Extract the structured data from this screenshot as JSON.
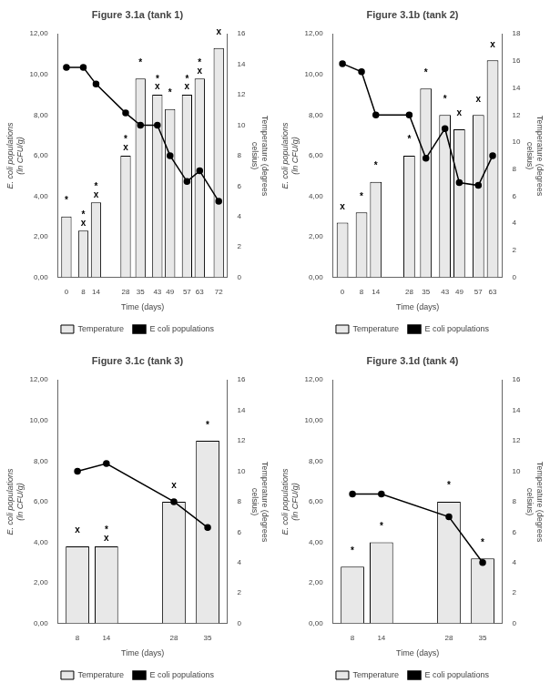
{
  "chart_data": [
    {
      "type": "bar",
      "title": "Figure 3.1a (tank 1)",
      "x": [
        0,
        8,
        14,
        28,
        35,
        43,
        49,
        57,
        63,
        72
      ],
      "series": [
        {
          "name": "Temperature",
          "type": "bar",
          "color": "#e8e8e8",
          "values": [
            3.0,
            2.3,
            3.7,
            6.0,
            9.8,
            9.0,
            8.3,
            9.0,
            9.8,
            11.3
          ]
        },
        {
          "name": "E coli populations",
          "type": "line",
          "axis": "y2",
          "color": "#000000",
          "marker": "circle",
          "values": [
            13.8,
            13.8,
            12.7,
            10.8,
            10.0,
            10.0,
            8.0,
            6.3,
            7.0,
            5.0
          ]
        }
      ],
      "xlabel": "Time (days)",
      "ylabel": "E. coli populations\n(ln CFU/g)",
      "y2label": "Temperature (degrees\ncelsius)",
      "xlim": [
        -4,
        76
      ],
      "xticks": [
        0,
        8,
        14,
        28,
        35,
        43,
        49,
        57,
        63,
        72
      ],
      "ylim": [
        0,
        12
      ],
      "yticks": [
        {
          "value": 0,
          "label": "0,00"
        },
        {
          "value": 2,
          "label": "2,00"
        },
        {
          "value": 4,
          "label": "4,00"
        },
        {
          "value": 6,
          "label": "6,00"
        },
        {
          "value": 8,
          "label": "8,00"
        },
        {
          "value": 10,
          "label": "10,00"
        },
        {
          "value": 12,
          "label": "12,00"
        }
      ],
      "y2lim": [
        0,
        16
      ],
      "y2ticks": [
        0,
        2,
        4,
        6,
        8,
        10,
        12,
        14,
        16
      ],
      "annotations": [
        {
          "x": 0,
          "y": 3.55,
          "text": "*"
        },
        {
          "x": 8,
          "y": 2.85,
          "text": "*"
        },
        {
          "x": 8,
          "y": 2.45,
          "text": "x"
        },
        {
          "x": 14,
          "y": 4.25,
          "text": "*"
        },
        {
          "x": 14,
          "y": 3.85,
          "text": "x"
        },
        {
          "x": 28,
          "y": 6.55,
          "text": "*"
        },
        {
          "x": 28,
          "y": 6.15,
          "text": "x"
        },
        {
          "x": 35,
          "y": 10.35,
          "text": "*"
        },
        {
          "x": 43,
          "y": 9.55,
          "text": "*"
        },
        {
          "x": 43,
          "y": 9.15,
          "text": "x"
        },
        {
          "x": 49,
          "y": 8.85,
          "text": "*"
        },
        {
          "x": 57,
          "y": 9.55,
          "text": "*"
        },
        {
          "x": 57,
          "y": 9.15,
          "text": "x"
        },
        {
          "x": 63,
          "y": 10.35,
          "text": "*"
        },
        {
          "x": 63,
          "y": 9.95,
          "text": "x"
        },
        {
          "x": 72,
          "y": 11.85,
          "text": "x"
        }
      ],
      "legend": "bottom",
      "grid": false
    },
    {
      "type": "bar",
      "title": "Figure 3.1b (tank 2)",
      "x": [
        0,
        8,
        14,
        28,
        35,
        43,
        49,
        57,
        63
      ],
      "series": [
        {
          "name": "Temperature",
          "type": "bar",
          "color": "#e8e8e8",
          "values": [
            2.7,
            3.2,
            4.7,
            6.0,
            9.3,
            8.0,
            7.3,
            8.0,
            10.7
          ]
        },
        {
          "name": "E coli populations",
          "type": "line",
          "axis": "y2",
          "color": "#000000",
          "marker": "circle",
          "values": [
            15.8,
            15.2,
            12.0,
            12.0,
            8.8,
            11.0,
            7.0,
            6.8,
            9.0
          ]
        }
      ],
      "xlabel": "Time (days)",
      "ylabel": "E. coli populations\n(ln CFU/g)",
      "y2label": "Temperature (degrees\ncelsius)",
      "xlim": [
        -4,
        67
      ],
      "xticks": [
        0,
        8,
        14,
        28,
        35,
        43,
        49,
        57,
        63
      ],
      "ylim": [
        0,
        12
      ],
      "yticks": [
        {
          "value": 0,
          "label": "0,00"
        },
        {
          "value": 2,
          "label": "2,00"
        },
        {
          "value": 4,
          "label": "4,00"
        },
        {
          "value": 6,
          "label": "6,00"
        },
        {
          "value": 8,
          "label": "8,00"
        },
        {
          "value": 10,
          "label": "10,00"
        },
        {
          "value": 12,
          "label": "12,00"
        }
      ],
      "y2lim": [
        0,
        18
      ],
      "y2ticks": [
        0,
        2,
        4,
        6,
        8,
        10,
        12,
        14,
        16,
        18
      ],
      "annotations": [
        {
          "x": 0,
          "y": 3.25,
          "text": "x"
        },
        {
          "x": 8,
          "y": 3.75,
          "text": "*"
        },
        {
          "x": 14,
          "y": 5.25,
          "text": "*"
        },
        {
          "x": 28,
          "y": 6.55,
          "text": "*"
        },
        {
          "x": 35,
          "y": 9.85,
          "text": "*"
        },
        {
          "x": 43,
          "y": 8.55,
          "text": "*"
        },
        {
          "x": 49,
          "y": 7.85,
          "text": "x"
        },
        {
          "x": 57,
          "y": 8.55,
          "text": "x"
        },
        {
          "x": 63,
          "y": 11.25,
          "text": "x"
        }
      ],
      "legend": "bottom",
      "grid": false
    },
    {
      "type": "bar",
      "title": "Figure 3.1c (tank 3)",
      "x": [
        8,
        14,
        28,
        35
      ],
      "series": [
        {
          "name": "Temperature",
          "type": "bar",
          "color": "#e8e8e8",
          "values": [
            3.8,
            3.8,
            6.0,
            9.0
          ]
        },
        {
          "name": "E coli populations",
          "type": "line",
          "axis": "y2",
          "color": "#000000",
          "marker": "circle",
          "values": [
            10.0,
            10.5,
            8.0,
            6.3
          ]
        }
      ],
      "xlabel": "Time (days)",
      "ylabel": "E. coli populations\n(ln CFU/g)",
      "y2label": "Temperature (degrees\ncelsius)",
      "xlim": [
        3.95,
        39.05
      ],
      "xticks": [
        8,
        14,
        28,
        35
      ],
      "ylim": [
        0,
        12
      ],
      "yticks": [
        {
          "value": 0,
          "label": "0,00"
        },
        {
          "value": 2,
          "label": "2,00"
        },
        {
          "value": 4,
          "label": "4,00"
        },
        {
          "value": 6,
          "label": "6,00"
        },
        {
          "value": 8,
          "label": "8,00"
        },
        {
          "value": 10,
          "label": "10,00"
        },
        {
          "value": 12,
          "label": "12,00"
        }
      ],
      "y2lim": [
        0,
        16
      ],
      "y2ticks": [
        0,
        2,
        4,
        6,
        8,
        10,
        12,
        14,
        16
      ],
      "annotations": [
        {
          "x": 8,
          "y": 4.35,
          "text": "x"
        },
        {
          "x": 14,
          "y": 4.35,
          "text": "*"
        },
        {
          "x": 14,
          "y": 3.95,
          "text": "x"
        },
        {
          "x": 28,
          "y": 6.55,
          "text": "x"
        },
        {
          "x": 35,
          "y": 9.55,
          "text": "*"
        }
      ],
      "legend": "bottom",
      "grid": false
    },
    {
      "type": "bar",
      "title": "Figure 3.1d (tank 4)",
      "x": [
        8,
        14,
        28,
        35
      ],
      "series": [
        {
          "name": "Temperature",
          "type": "bar",
          "color": "#e8e8e8",
          "values": [
            2.8,
            4.0,
            6.0,
            3.2
          ]
        },
        {
          "name": "E coli populations",
          "type": "line",
          "axis": "y2",
          "color": "#000000",
          "marker": "circle",
          "values": [
            8.5,
            8.5,
            7.0,
            4.0
          ]
        }
      ],
      "xlabel": "Time (days)",
      "ylabel": "E. coli populations\n(ln CFU/g)",
      "y2label": "Temperature (degrees\ncelsius)",
      "xlim": [
        3.95,
        39.05
      ],
      "xticks": [
        8,
        14,
        28,
        35
      ],
      "ylim": [
        0,
        12
      ],
      "yticks": [
        {
          "value": 0,
          "label": "0,00"
        },
        {
          "value": 2,
          "label": "2,00"
        },
        {
          "value": 4,
          "label": "4,00"
        },
        {
          "value": 6,
          "label": "6,00"
        },
        {
          "value": 8,
          "label": "8,00"
        },
        {
          "value": 10,
          "label": "10,00"
        },
        {
          "value": 12,
          "label": "12,00"
        }
      ],
      "y2lim": [
        0,
        16
      ],
      "y2ticks": [
        0,
        2,
        4,
        6,
        8,
        10,
        12,
        14,
        16
      ],
      "annotations": [
        {
          "x": 8,
          "y": 3.35,
          "text": "*"
        },
        {
          "x": 14,
          "y": 4.55,
          "text": "*"
        },
        {
          "x": 28,
          "y": 6.55,
          "text": "*"
        },
        {
          "x": 35,
          "y": 3.75,
          "text": "*"
        }
      ],
      "legend": "bottom",
      "grid": false
    }
  ]
}
